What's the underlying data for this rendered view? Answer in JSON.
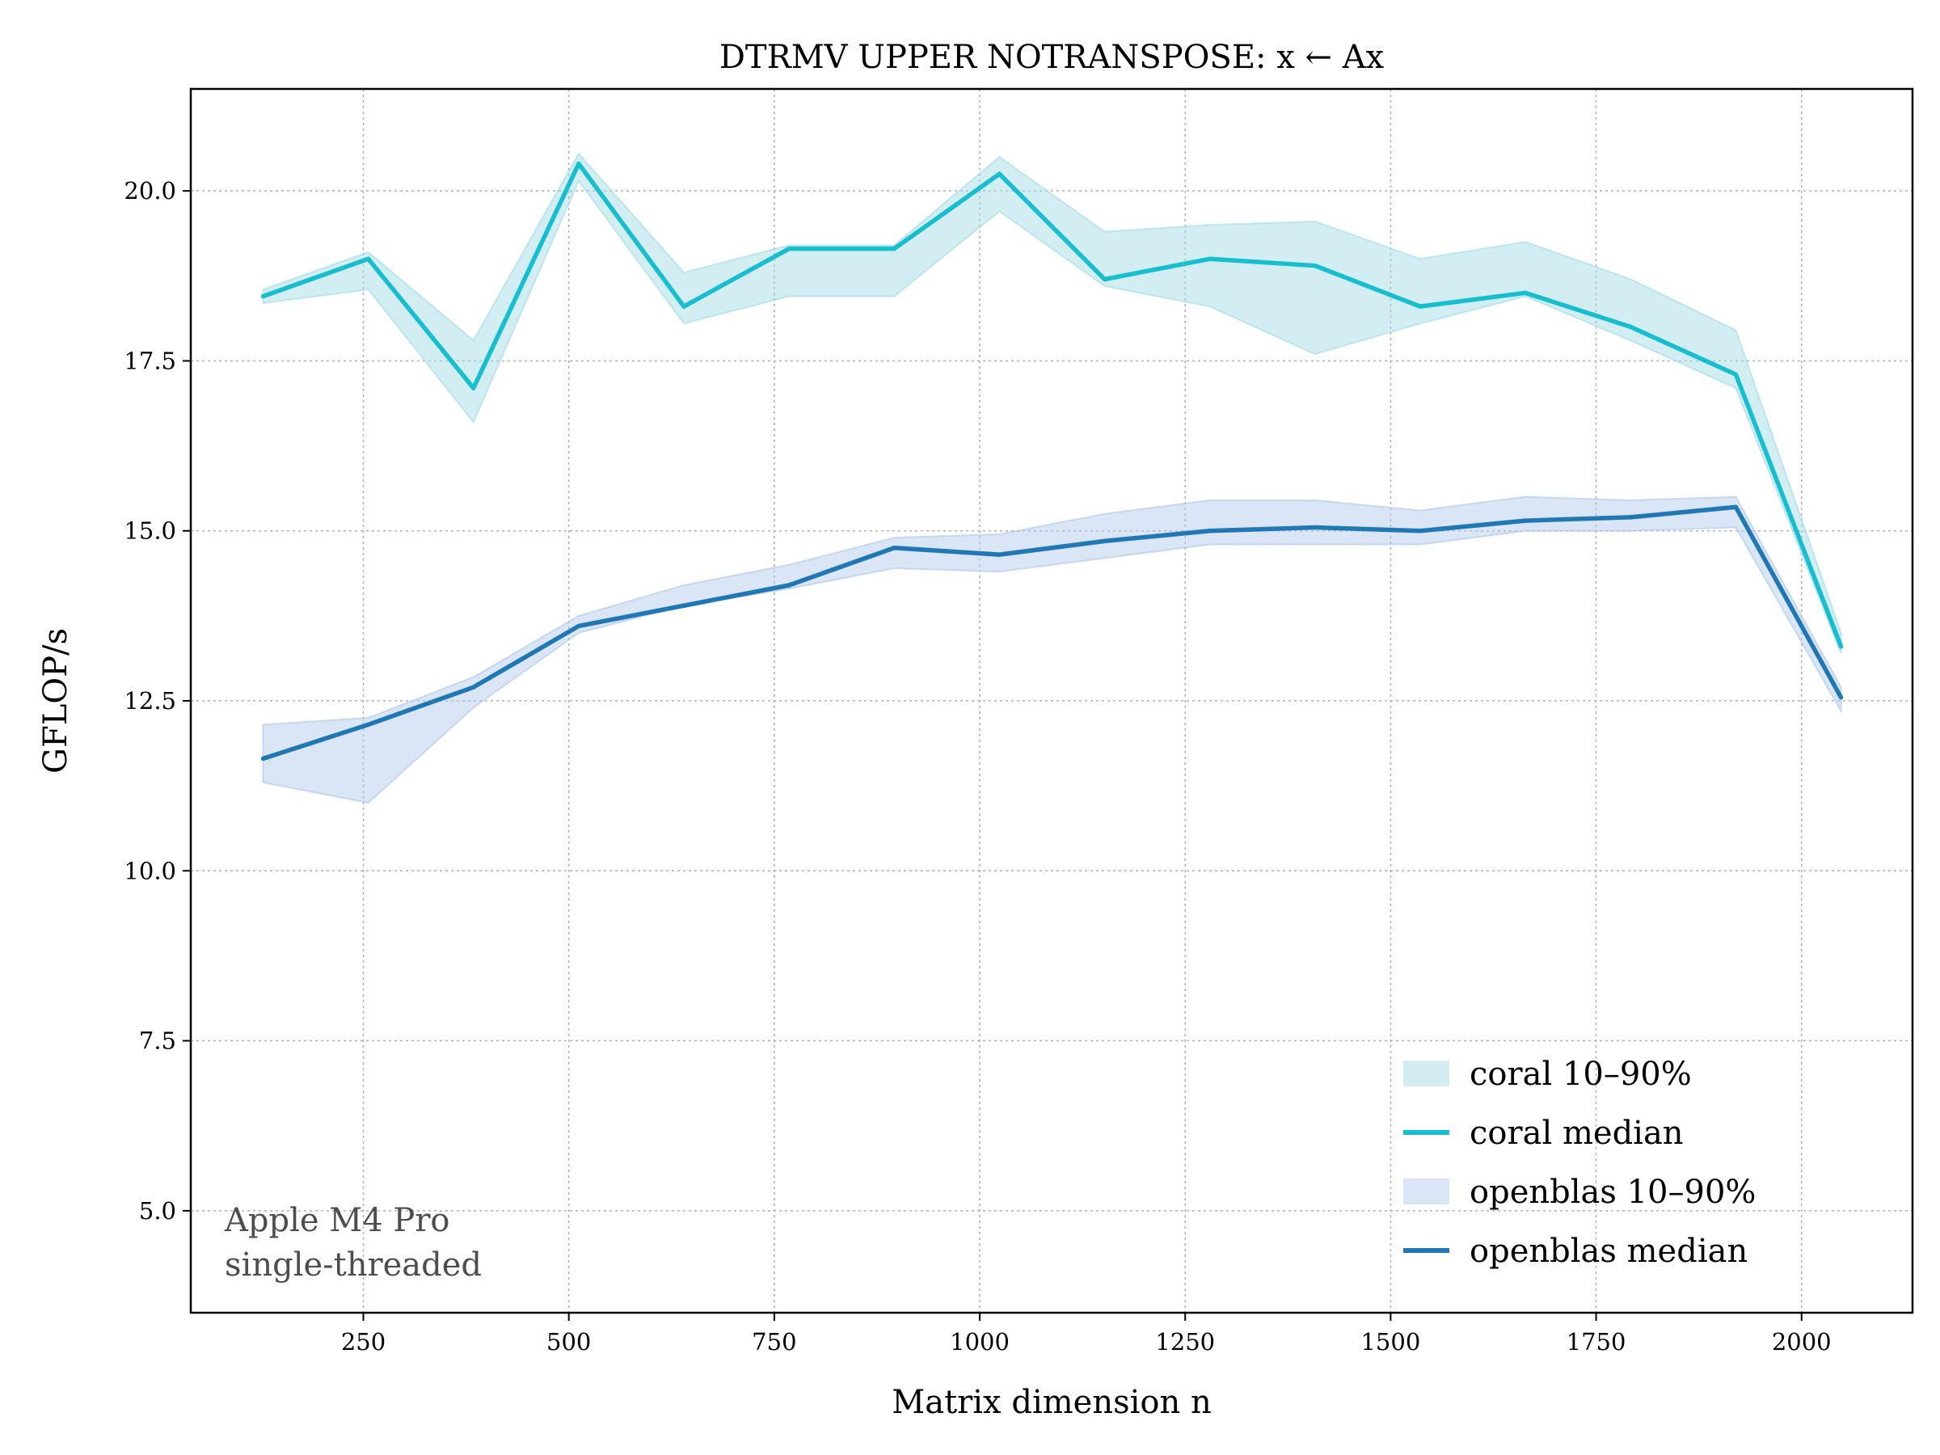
{
  "chart_data": {
    "type": "line",
    "title": "DTRMV UPPER NOTRANSPOSE: x ← Ax",
    "xlabel": "Matrix dimension n",
    "ylabel": "GFLOP/s",
    "xlim": [
      40,
      2135
    ],
    "ylim": [
      3.5,
      21.5
    ],
    "xticks": [
      250,
      500,
      750,
      1000,
      1250,
      1500,
      1750,
      2000
    ],
    "yticks": [
      5.0,
      7.5,
      10.0,
      12.5,
      15.0,
      17.5,
      20.0
    ],
    "xtick_labels": [
      "250",
      "500",
      "750",
      "1000",
      "1250",
      "1500",
      "1750",
      "2000"
    ],
    "ytick_labels": [
      "5.0",
      "7.5",
      "10.0",
      "12.5",
      "15.0",
      "17.5",
      "20.0"
    ],
    "grid": true,
    "legend_position": "bottom-right",
    "annotation": [
      "Apple M4 Pro",
      "single-threaded"
    ],
    "x": [
      128,
      256,
      384,
      512,
      640,
      768,
      896,
      1024,
      1152,
      1280,
      1408,
      1536,
      1664,
      1792,
      1920,
      2048
    ],
    "series": [
      {
        "name": "coral median",
        "band_name": "coral 10–90%",
        "color": "#17becf",
        "band_color": "#9edae5",
        "median": [
          18.45,
          19.0,
          17.1,
          20.4,
          18.3,
          19.15,
          19.15,
          20.25,
          18.7,
          19.0,
          18.9,
          18.3,
          18.5,
          18.0,
          17.3,
          13.3
        ],
        "p10": [
          18.35,
          18.55,
          16.6,
          20.15,
          18.05,
          18.45,
          18.45,
          19.7,
          18.6,
          18.3,
          17.6,
          18.05,
          18.45,
          17.8,
          17.1,
          13.2
        ],
        "p90": [
          18.55,
          19.1,
          17.8,
          20.55,
          18.8,
          19.2,
          19.2,
          20.5,
          19.4,
          19.5,
          19.55,
          19.0,
          19.25,
          18.7,
          17.95,
          13.5
        ]
      },
      {
        "name": "openblas median",
        "band_name": "openblas 10–90%",
        "color": "#1f77b4",
        "band_color": "#aec7e8",
        "median": [
          11.65,
          12.15,
          12.7,
          13.6,
          13.9,
          14.2,
          14.75,
          14.65,
          14.85,
          15.0,
          15.05,
          15.0,
          15.15,
          15.2,
          15.35,
          12.55
        ],
        "p10": [
          11.3,
          11.0,
          12.4,
          13.5,
          13.9,
          14.15,
          14.45,
          14.4,
          14.6,
          14.8,
          14.8,
          14.8,
          15.0,
          15.0,
          15.05,
          12.35
        ],
        "p90": [
          12.15,
          12.25,
          12.85,
          13.75,
          14.2,
          14.5,
          14.9,
          14.95,
          15.25,
          15.45,
          15.45,
          15.3,
          15.5,
          15.45,
          15.5,
          12.7
        ]
      }
    ]
  }
}
